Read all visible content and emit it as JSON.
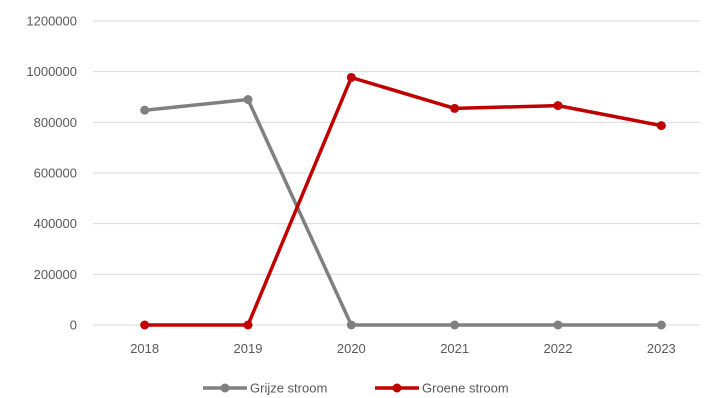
{
  "chart_data": {
    "type": "line",
    "title": "",
    "xlabel": "",
    "ylabel": "",
    "categories": [
      "2018",
      "2019",
      "2020",
      "2021",
      "2022",
      "2023"
    ],
    "ylim": [
      0,
      1200000
    ],
    "yticks": [
      "0",
      "200000",
      "400000",
      "600000",
      "800000",
      "1000000",
      "1200000"
    ],
    "grid": true,
    "legend_position": "bottom",
    "series": [
      {
        "name": "Grijze stroom",
        "color": "#808080",
        "values": [
          848000,
          890000,
          0,
          0,
          0,
          0
        ]
      },
      {
        "name": "Groene stroom",
        "color": "#c00000",
        "values": [
          0,
          0,
          977000,
          855000,
          866000,
          787000
        ]
      }
    ]
  }
}
